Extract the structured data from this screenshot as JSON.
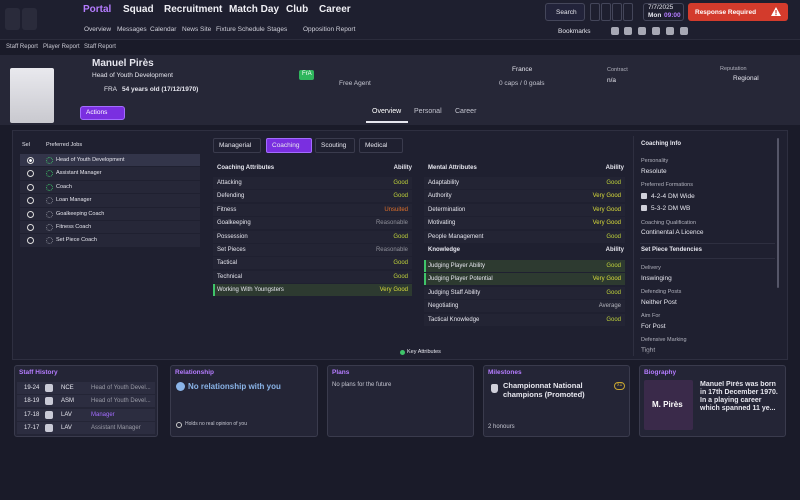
{
  "nav": {
    "items": [
      "Portal",
      "Squad",
      "Recruitment",
      "Match Day",
      "Club",
      "Career"
    ],
    "subitems": [
      "Overview",
      "Messages",
      "Calendar",
      "News Site",
      "Fixture Schedule",
      "Stages",
      "Opposition Report"
    ],
    "search": "Search",
    "date": "7/7/2025",
    "day": "Mon",
    "time": "09:00",
    "alert": "Response Required",
    "bookmarks": "Bookmarks"
  },
  "breadcrumb": [
    "Staff Report",
    "Player Report",
    "Staff Report"
  ],
  "profile": {
    "name": "Manuel Pirès",
    "role": "Head of Youth Development",
    "nationality": "FRA",
    "age": "54 years old (17/12/1970)",
    "badge": "FrA",
    "status": "Free Agent",
    "country": "France",
    "caps": "0 caps / 0 goals",
    "contract_label": "Contract",
    "contract": "n/a",
    "reputation_label": "Reputation",
    "reputation": "Regional",
    "actions": "Actions",
    "tabs": [
      "Overview",
      "Personal",
      "Career"
    ]
  },
  "jobs": {
    "headers": [
      "Sel",
      "Preferred Jobs"
    ],
    "items": [
      {
        "name": "Head of Youth Development",
        "icon_color": "#3fc46a",
        "selected": true
      },
      {
        "name": "Assistant Manager",
        "icon_color": "#3fc46a"
      },
      {
        "name": "Coach",
        "icon_color": "#3fc46a"
      },
      {
        "name": "Loan Manager",
        "icon_color": "#8a8c99"
      },
      {
        "name": "Goalkeeping Coach",
        "icon_color": "#8a8c99"
      },
      {
        "name": "Fitness Coach",
        "icon_color": "#8a8c99"
      },
      {
        "name": "Set Piece Coach",
        "icon_color": "#8a8c99"
      }
    ]
  },
  "attributes": {
    "tabs": [
      "Managerial",
      "Coaching",
      "Scouting",
      "Medical"
    ],
    "active_tab": 1,
    "coaching_header": "Coaching Attributes",
    "ability_header": "Ability",
    "coaching": [
      {
        "name": "Attacking",
        "ability": "Good",
        "color": "#bfd23a"
      },
      {
        "name": "Defending",
        "ability": "Good",
        "color": "#bfd23a"
      },
      {
        "name": "Fitness",
        "ability": "Unsuited",
        "color": "#e0702a"
      },
      {
        "name": "Goalkeeping",
        "ability": "Reasonable",
        "color": "#8f909a"
      },
      {
        "name": "Possession",
        "ability": "Good",
        "color": "#bfd23a"
      },
      {
        "name": "Set Pieces",
        "ability": "Reasonable",
        "color": "#8f909a"
      },
      {
        "name": "Tactical",
        "ability": "Good",
        "color": "#bfd23a"
      },
      {
        "name": "Technical",
        "ability": "Good",
        "color": "#bfd23a"
      },
      {
        "name": "Working With Youngsters",
        "ability": "Very Good",
        "color": "#d9dc3a",
        "key": true
      }
    ],
    "mental_header": "Mental Attributes",
    "mental_ability_header": "Ability",
    "mental": [
      {
        "name": "Adaptability",
        "ability": "Good",
        "color": "#bfd23a"
      },
      {
        "name": "Authority",
        "ability": "Very Good",
        "color": "#d9dc3a"
      },
      {
        "name": "Determination",
        "ability": "Very Good",
        "color": "#d9dc3a"
      },
      {
        "name": "Motivating",
        "ability": "Very Good",
        "color": "#d9dc3a"
      },
      {
        "name": "People Management",
        "ability": "Good",
        "color": "#bfd23a"
      }
    ],
    "knowledge_header": "Knowledge",
    "knowledge_ability_header": "Ability",
    "knowledge": [
      {
        "name": "Judging Player Ability",
        "ability": "Good",
        "color": "#bfd23a",
        "key": true
      },
      {
        "name": "Judging Player Potential",
        "ability": "Very Good",
        "color": "#d9dc3a",
        "key": true
      },
      {
        "name": "Judging Staff Ability",
        "ability": "Good",
        "color": "#bfd23a"
      },
      {
        "name": "Negotiating",
        "ability": "Average",
        "color": "#b4b5bd"
      },
      {
        "name": "Tactical Knowledge",
        "ability": "Good",
        "color": "#bfd23a"
      }
    ],
    "legend": "Key Attributes"
  },
  "coaching_info": {
    "title": "Coaching Info",
    "personality_label": "Personality",
    "personality": "Resolute",
    "formations_label": "Preferred Formations",
    "formations": [
      "4-2-4 DM Wide",
      "5-3-2 DM WB"
    ],
    "qualification_label": "Coaching Qualification",
    "qualification": "Continental A Licence",
    "set_piece_title": "Set Piece Tendencies",
    "tendencies": [
      {
        "label": "Delivery",
        "value": "Inswinging"
      },
      {
        "label": "Defending Posts",
        "value": "Neither Post"
      },
      {
        "label": "Aim For",
        "value": "For Post"
      },
      {
        "label": "Defensive Marking",
        "value": "Tight"
      }
    ]
  },
  "staff_history": {
    "title": "Staff History",
    "rows": [
      {
        "years": "19-24",
        "club": "NCE",
        "job": "Head of Youth Devel...",
        "color": "#9a9ba6"
      },
      {
        "years": "18-19",
        "club": "ASM",
        "job": "Head of Youth Devel...",
        "color": "#9a9ba6"
      },
      {
        "years": "17-18",
        "club": "LAV",
        "job": "Manager",
        "color": "#a36cff"
      },
      {
        "years": "17-17",
        "club": "LAV",
        "job": "Assistant Manager",
        "color": "#9a9ba6"
      }
    ]
  },
  "relationship": {
    "title": "Relationship",
    "status": "No relationship with you",
    "note": "Holds no real opinion of you"
  },
  "plans": {
    "title": "Plans",
    "text": "No plans for the future"
  },
  "milestones": {
    "title": "Milestones",
    "item": "Championnat National champions (Promoted)",
    "count": "x1",
    "honours": "2 honours"
  },
  "biography": {
    "title": "Biography",
    "image_text": "M. Pirès",
    "text": "Manuel Pirès was born in 17th December 1970. In a playing career which spanned 11 ye..."
  }
}
